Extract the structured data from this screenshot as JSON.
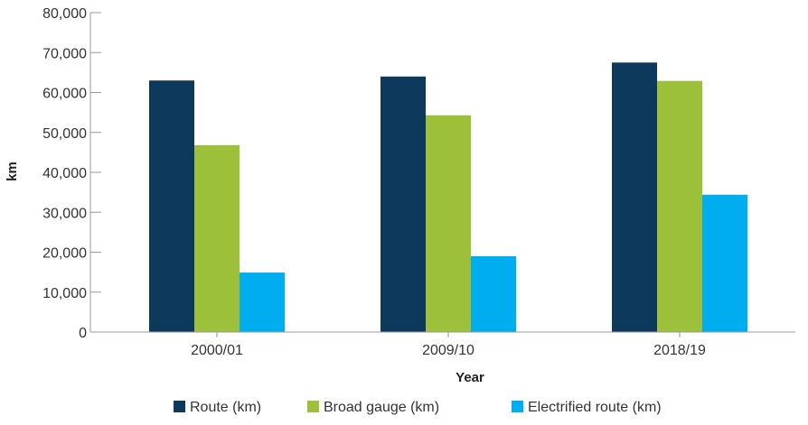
{
  "chart_data": {
    "type": "bar",
    "categories": [
      "2000/01",
      "2009/10",
      "2018/19"
    ],
    "series": [
      {
        "name": "Route (km)",
        "values": [
          63000,
          64000,
          67500
        ],
        "color": "#0d3a5c"
      },
      {
        "name": "Broad gauge (km)",
        "values": [
          46800,
          54300,
          62900
        ],
        "color": "#9dc03b"
      },
      {
        "name": "Electrified route (km)",
        "values": [
          14900,
          19000,
          34400
        ],
        "color": "#00aeef"
      }
    ],
    "y_ticks": [
      "0",
      "10,000",
      "20,000",
      "30,000",
      "40,000",
      "50,000",
      "60,000",
      "70,000",
      "80,000"
    ],
    "xlabel": "Year",
    "ylabel": "km",
    "ylim": [
      0,
      80000
    ],
    "grid": false,
    "legend": "bottom"
  }
}
